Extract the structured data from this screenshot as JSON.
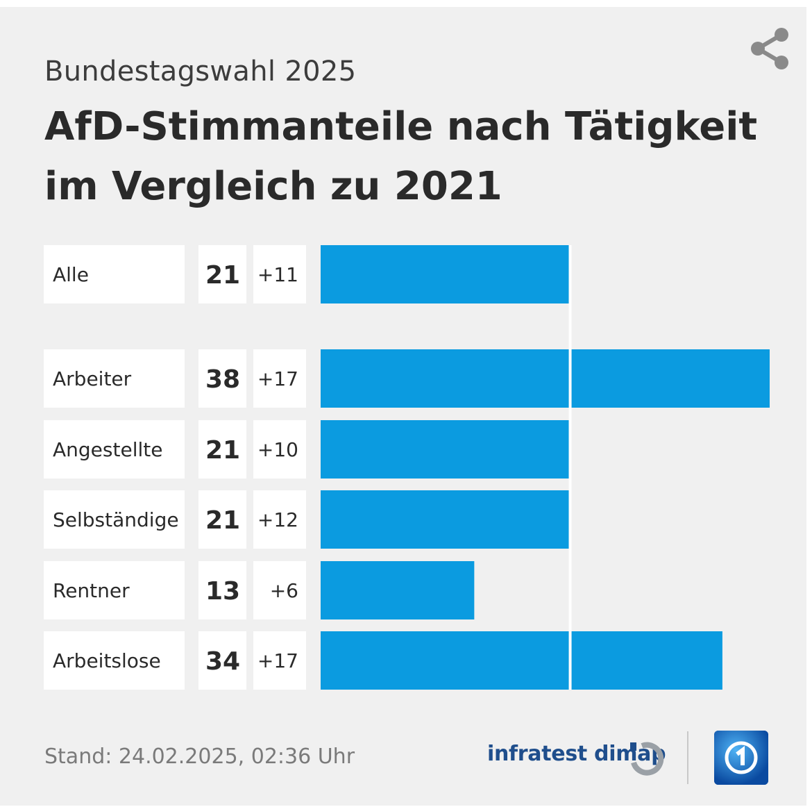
{
  "header": {
    "subtitle": "Bundestagswahl 2025",
    "title_line1": "AfD-Stimmanteile nach Tätigkeit",
    "title_line2": "im Vergleich zu 2021"
  },
  "icons": {
    "share": "share-icon",
    "infratest": "infratest-dimap-logo",
    "tagesschau": "tagesschau-logo"
  },
  "colors": {
    "bar": "#0b9be0",
    "label_bg": "#ffffff",
    "card_bg": "#f0f0f0",
    "text": "#2a2a2a"
  },
  "chart_data": {
    "type": "bar",
    "orientation": "horizontal",
    "title": "AfD-Stimmanteile nach Tätigkeit im Vergleich zu 2021",
    "subtitle": "Bundestagswahl 2025",
    "categories": [
      "Alle",
      "Arbeiter",
      "Angestellte",
      "Selbständige",
      "Rentner",
      "Arbeitslose"
    ],
    "values": [
      21,
      38,
      21,
      21,
      13,
      34
    ],
    "changes": [
      "+11",
      "+17",
      "+10",
      "+12",
      "+6",
      "+17"
    ],
    "xlim": [
      0,
      38
    ],
    "reference_value": 21,
    "unit": "%"
  },
  "footer": {
    "stand": "Stand:  24.02.2025, 02:36 Uhr",
    "source": "infratest dimap"
  }
}
